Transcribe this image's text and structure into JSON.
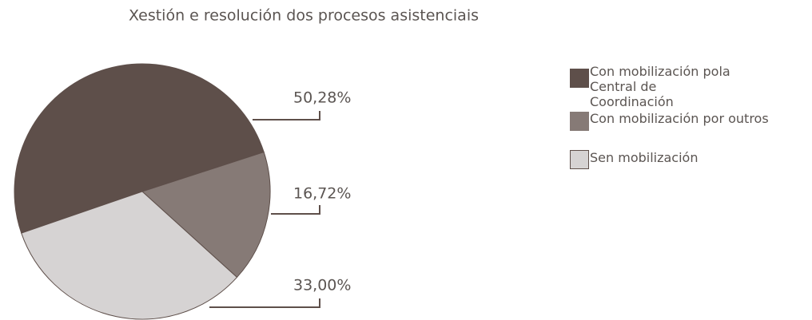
{
  "chart_data": {
    "type": "pie",
    "title": "Xestión e resolución dos procesos asistenciais",
    "categories": [
      "Con mobilización pola Central de Coordinación",
      "Con mobilización por outros",
      "Sen mobilización"
    ],
    "values": [
      50.28,
      16.72,
      33.0
    ],
    "value_labels": [
      "50,28%",
      "16,72%",
      "33,00%"
    ],
    "colors": [
      "#5e4f4a",
      "#867a76",
      "#d6d3d3"
    ],
    "legend": "right"
  }
}
